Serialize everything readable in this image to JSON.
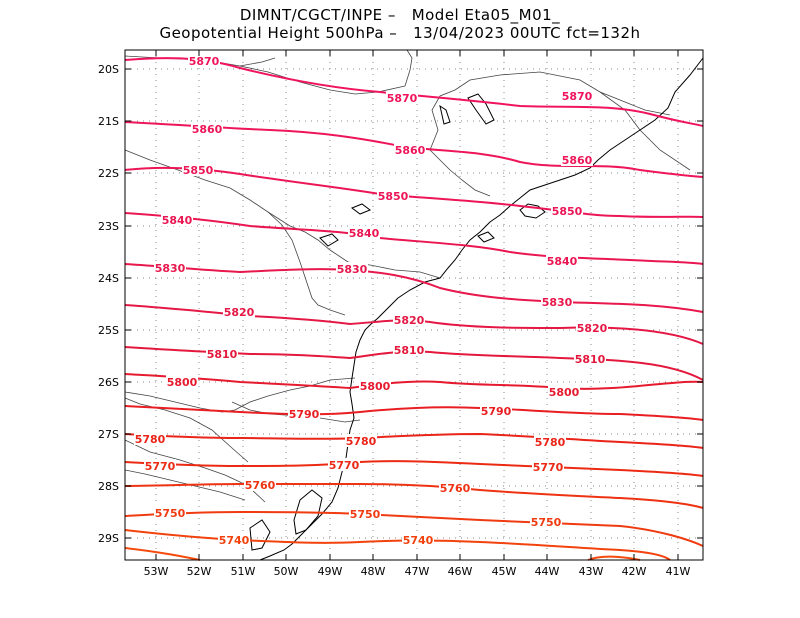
{
  "title": {
    "line1": "DIMNT/CGCT/INPE –   Model Eta05_M01_",
    "line2": "Geopotential Height 500hPa –   13/04/2023 00UTC fct=132h"
  },
  "axes": {
    "lat_labels": [
      "20S",
      "21S",
      "22S",
      "23S",
      "24S",
      "25S",
      "26S",
      "27S",
      "28S",
      "29S"
    ],
    "lon_labels": [
      "53W",
      "52W",
      "51W",
      "50W",
      "49W",
      "48W",
      "47W",
      "46W",
      "45W",
      "44W",
      "43W",
      "42W",
      "41W"
    ]
  },
  "contours": [
    {
      "value": "5870",
      "color": "#f0145c",
      "labels": [
        "5870",
        "5870",
        "5870"
      ]
    },
    {
      "value": "5860",
      "color": "#ee155a",
      "labels": [
        "5860",
        "5860",
        "5860"
      ]
    },
    {
      "value": "5850",
      "color": "#ec1656",
      "labels": [
        "5850",
        "5850",
        "5850"
      ]
    },
    {
      "value": "5840",
      "color": "#ea1652",
      "labels": [
        "5840",
        "5840",
        "5840"
      ]
    },
    {
      "value": "5830",
      "color": "#e8174c",
      "labels": [
        "5830",
        "5830",
        "5830"
      ]
    },
    {
      "value": "5820",
      "color": "#e51845",
      "labels": [
        "5820",
        "5820",
        "5820"
      ]
    },
    {
      "value": "5810",
      "color": "#e4183c",
      "labels": [
        "5810",
        "5810",
        "5810"
      ]
    },
    {
      "value": "5800",
      "color": "#e61a2e",
      "labels": [
        "5800",
        "5800",
        "5800"
      ]
    },
    {
      "value": "5790",
      "color": "#e81e22",
      "labels": [
        "5790",
        "5790"
      ]
    },
    {
      "value": "5780",
      "color": "#ea2418",
      "labels": [
        "5780",
        "5780",
        "5780"
      ]
    },
    {
      "value": "5770",
      "color": "#ec2a14",
      "labels": [
        "5770",
        "5770",
        "5770"
      ]
    },
    {
      "value": "5760",
      "color": "#ee3212",
      "labels": [
        "5760",
        "5760"
      ]
    },
    {
      "value": "5750",
      "color": "#f03a10",
      "labels": [
        "5750",
        "5750",
        "5750"
      ]
    },
    {
      "value": "5740",
      "color": "#f2420e",
      "labels": [
        "5740",
        "5740"
      ]
    }
  ],
  "colors": {
    "frame": "#000000",
    "grid": "#888888",
    "coast": "#000000",
    "border": "#444444"
  }
}
